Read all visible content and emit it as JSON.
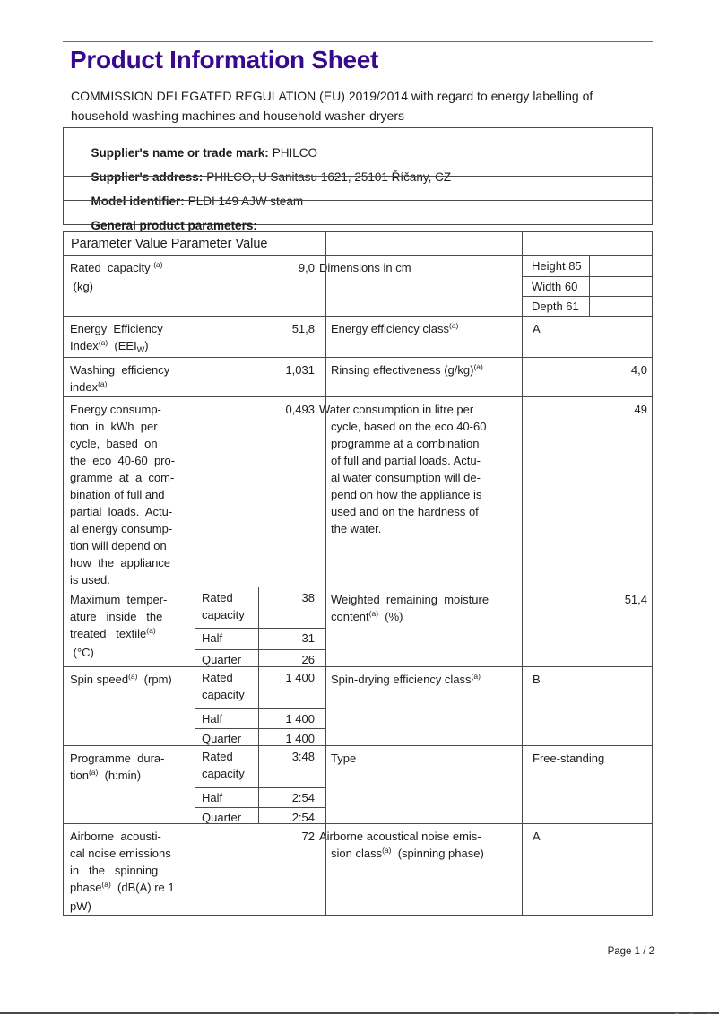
{
  "page": {
    "title": "Product Information Sheet",
    "footer": "Page 1 / 2"
  },
  "intro": "COMMISSION DELEGATED REGULATION (EU) 2019/2014 with regard to energy labelling of\nhousehold washing machines and household washer-dryers",
  "info_rows": [
    {
      "label": "Supplier's name or trade mark:",
      "value": "PHILCO"
    },
    {
      "label": "Supplier's address:",
      "value": "PHILCO, U Sanitasu 1621, 25101 Říčany, CZ"
    },
    {
      "label": "Model identifier:",
      "value": "PLDI 149 AJW steam"
    },
    {
      "label": "General product parameters:",
      "value": ""
    }
  ],
  "table": {
    "header_text": "Parameter Value Parameter Value",
    "rows": {
      "capacity": {
        "p1": [
          {
            "t": "Rated  capacity "
          },
          {
            "t": "(a)",
            "s": "sup"
          },
          {
            "t": "\n (kg)"
          }
        ],
        "v1": "9,0",
        "p2": "Dimensions in cm",
        "dims": [
          {
            "label": "Height 85"
          },
          {
            "label": "Width 60"
          },
          {
            "label": "Depth 61"
          }
        ]
      },
      "eei": {
        "p1": [
          {
            "t": "Energy  Efficiency\nIndex"
          },
          {
            "t": "(a)",
            "s": "sup"
          },
          {
            "t": "  (EEI"
          },
          {
            "t": "W",
            "s": "sub"
          },
          {
            "t": ")"
          }
        ],
        "v1": "51,8",
        "p2": [
          {
            "t": "Energy efficiency class"
          },
          {
            "t": "(a)",
            "s": "sup"
          }
        ],
        "v2": "A"
      },
      "washing": {
        "p1": [
          {
            "t": "Washing  efficiency\nindex"
          },
          {
            "t": "(a)",
            "s": "sup"
          }
        ],
        "v1": "1,031",
        "p2": [
          {
            "t": "Rinsing effectiveness (g/kg)"
          },
          {
            "t": "(a)",
            "s": "sup"
          }
        ],
        "v2": "4,0"
      },
      "energy": {
        "p1": "Energy consump-\ntion  in  kWh  per\ncycle,  based  on\nthe  eco  40-60  pro-\ngramme  at  a  com-\nbination of full and\npartial  loads.  Actu-\nal energy consump-\ntion will depend on\nhow  the  appliance\nis used.",
        "v1": "0,493",
        "p2": "Water consumption in litre per\ncycle, based on the eco 40-60\nprogramme at a combination\nof full and partial loads. Actu-\nal water consumption will de-\npend on how the appliance is\nused and on the hardness of\nthe water.",
        "v2": "49"
      },
      "maxtemp": {
        "p1": [
          {
            "t": "Maximum  temper-\nature   inside   the\ntreated   textile"
          },
          {
            "t": "(a)",
            "s": "sup"
          },
          {
            "t": "\n (°C)"
          }
        ],
        "sub": [
          {
            "label": "Rated\ncapacity",
            "value": "38"
          },
          {
            "label": "Half",
            "value": "31"
          },
          {
            "label": "Quarter",
            "value": "26"
          }
        ],
        "p2": [
          {
            "t": "Weighted  remaining  moisture\ncontent"
          },
          {
            "t": "(a)",
            "s": "sup"
          },
          {
            "t": "  (%)"
          }
        ],
        "v2": "51,4"
      },
      "spin": {
        "p1": [
          {
            "t": "Spin speed"
          },
          {
            "t": "(a)",
            "s": "sup"
          },
          {
            "t": "  (rpm)"
          }
        ],
        "sub": [
          {
            "label": "Rated\ncapacity",
            "value": "1 400"
          },
          {
            "label": "Half",
            "value": "1 400"
          },
          {
            "label": "Quarter",
            "value": "1 400"
          }
        ],
        "p2": [
          {
            "t": "Spin-drying efficiency class"
          },
          {
            "t": "(a)",
            "s": "sup"
          }
        ],
        "v2": "B"
      },
      "duration": {
        "p1": [
          {
            "t": "Programme  dura-\ntion"
          },
          {
            "t": "(a)",
            "s": "sup"
          },
          {
            "t": "  (h:min)"
          }
        ],
        "sub": [
          {
            "label": "Rated\ncapacity",
            "value": "3:48"
          },
          {
            "label": "Half",
            "value": "2:54"
          },
          {
            "label": "Quarter",
            "value": "2:54"
          }
        ],
        "p2": "Type",
        "v2": "Free-standing"
      },
      "noise": {
        "p1": [
          {
            "t": "Airborne  acousti-\ncal noise emissions\nin   the   spinning\nphase"
          },
          {
            "t": "(a)",
            "s": "sup"
          },
          {
            "t": "  (dB(A) re 1\npW)"
          }
        ],
        "v1": "72",
        "p2": [
          {
            "t": "Airborne acoustical noise emis-\nsion class"
          },
          {
            "t": "(a)",
            "s": "sup"
          },
          {
            "t": "  (spinning phase)"
          }
        ],
        "v2": "A"
      }
    }
  }
}
